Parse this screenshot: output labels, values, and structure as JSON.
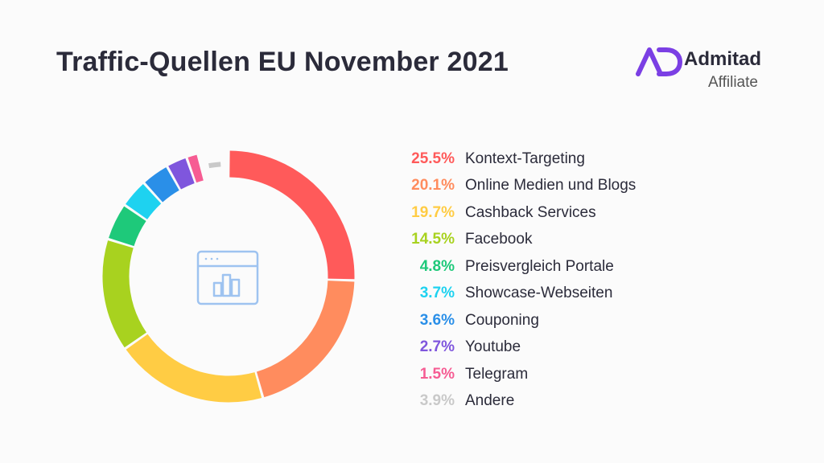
{
  "title": "Traffic-Quellen EU November 2021",
  "brand": {
    "name": "Admitad",
    "subtitle": "Affiliate",
    "logo_color": "#7b3fe4"
  },
  "center_icon": "browser-chart-icon",
  "chart_data": {
    "type": "pie",
    "style": "donut",
    "title": "Traffic-Quellen EU November 2021",
    "unit": "%",
    "categories": [
      "Kontext-Targeting",
      "Online Medien und Blogs",
      "Cashback Services",
      "Facebook",
      "Preisvergleich Portale",
      "Showcase-Webseiten",
      "Couponing",
      "Youtube",
      "Telegram",
      "Andere"
    ],
    "values": [
      25.5,
      20.1,
      19.7,
      14.5,
      4.8,
      3.7,
      3.6,
      2.7,
      1.5,
      3.9
    ],
    "labels": [
      "25.5%",
      "20.1%",
      "19.7%",
      "14.5%",
      "4.8%",
      "3.7%",
      "3.6%",
      "2.7%",
      "1.5%",
      "3.9%"
    ],
    "colors": [
      "#ff5a5a",
      "#ff8c5e",
      "#ffcc44",
      "#a8d21f",
      "#1ec97a",
      "#1ed2f0",
      "#2a8fe8",
      "#7f56dd",
      "#f65c93",
      "#c9c9c9"
    ],
    "legend_position": "right"
  }
}
